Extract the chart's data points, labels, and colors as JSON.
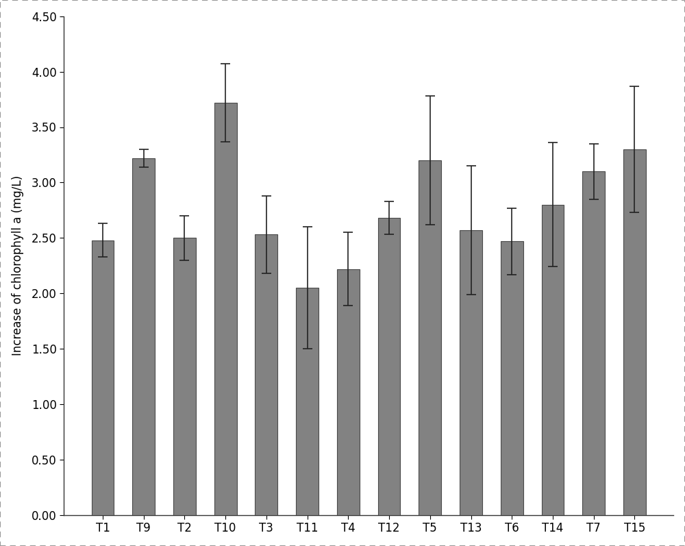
{
  "categories": [
    "T1",
    "T9",
    "T2",
    "T10",
    "T3",
    "T11",
    "T4",
    "T12",
    "T5",
    "T13",
    "T6",
    "T14",
    "T7",
    "T15"
  ],
  "values": [
    2.48,
    3.22,
    2.5,
    3.72,
    2.53,
    2.05,
    2.22,
    2.68,
    3.2,
    2.57,
    2.47,
    2.8,
    3.1,
    3.3
  ],
  "errors": [
    0.15,
    0.08,
    0.2,
    0.35,
    0.35,
    0.55,
    0.33,
    0.15,
    0.58,
    0.58,
    0.3,
    0.56,
    0.25,
    0.57
  ],
  "bar_color": "#828282",
  "bar_edge_color": "#4a4a4a",
  "ylabel": "Increase of chlorophyll a (mg/L)",
  "xlabel": "",
  "ylim": [
    0.0,
    4.5
  ],
  "yticks": [
    0.0,
    0.5,
    1.0,
    1.5,
    2.0,
    2.5,
    3.0,
    3.5,
    4.0,
    4.5
  ],
  "background_color": "#ffffff",
  "fig_background": "#ffffff",
  "title": "",
  "bar_width": 0.55,
  "figsize": [
    10.0,
    7.97
  ],
  "dpi": 100
}
